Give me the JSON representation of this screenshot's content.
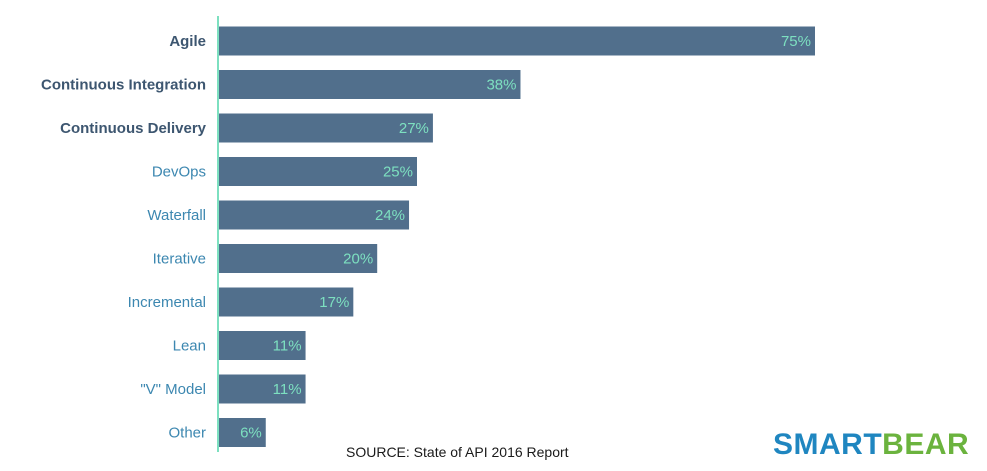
{
  "chart_data": {
    "type": "bar",
    "orientation": "horizontal",
    "categories": [
      "Agile",
      "Continuous Integration",
      "Continuous Delivery",
      "DevOps",
      "Waterfall",
      "Iterative",
      "Incremental",
      "Lean",
      "\"V\" Model",
      "Other"
    ],
    "values": [
      75,
      38,
      27,
      25,
      24,
      20,
      17,
      11,
      11,
      6
    ],
    "value_labels": [
      "75%",
      "38%",
      "27%",
      "25%",
      "24%",
      "20%",
      "17%",
      "11%",
      "11%",
      "6%"
    ],
    "unit": "%",
    "xlim": [
      0,
      80
    ],
    "grid": false,
    "colors": {
      "bar": "#516f8c",
      "value_label": "#7de0c0",
      "label_emphasis": "#3d5670",
      "label_default": "#3c87b0",
      "axis": "#7de0c0"
    }
  },
  "footer": {
    "source": "SOURCE: State of API 2016 Report"
  },
  "logo": {
    "part1": "SMART",
    "part2": "BEAR",
    "color1": "#1f86c0",
    "color2": "#6bb33e"
  }
}
